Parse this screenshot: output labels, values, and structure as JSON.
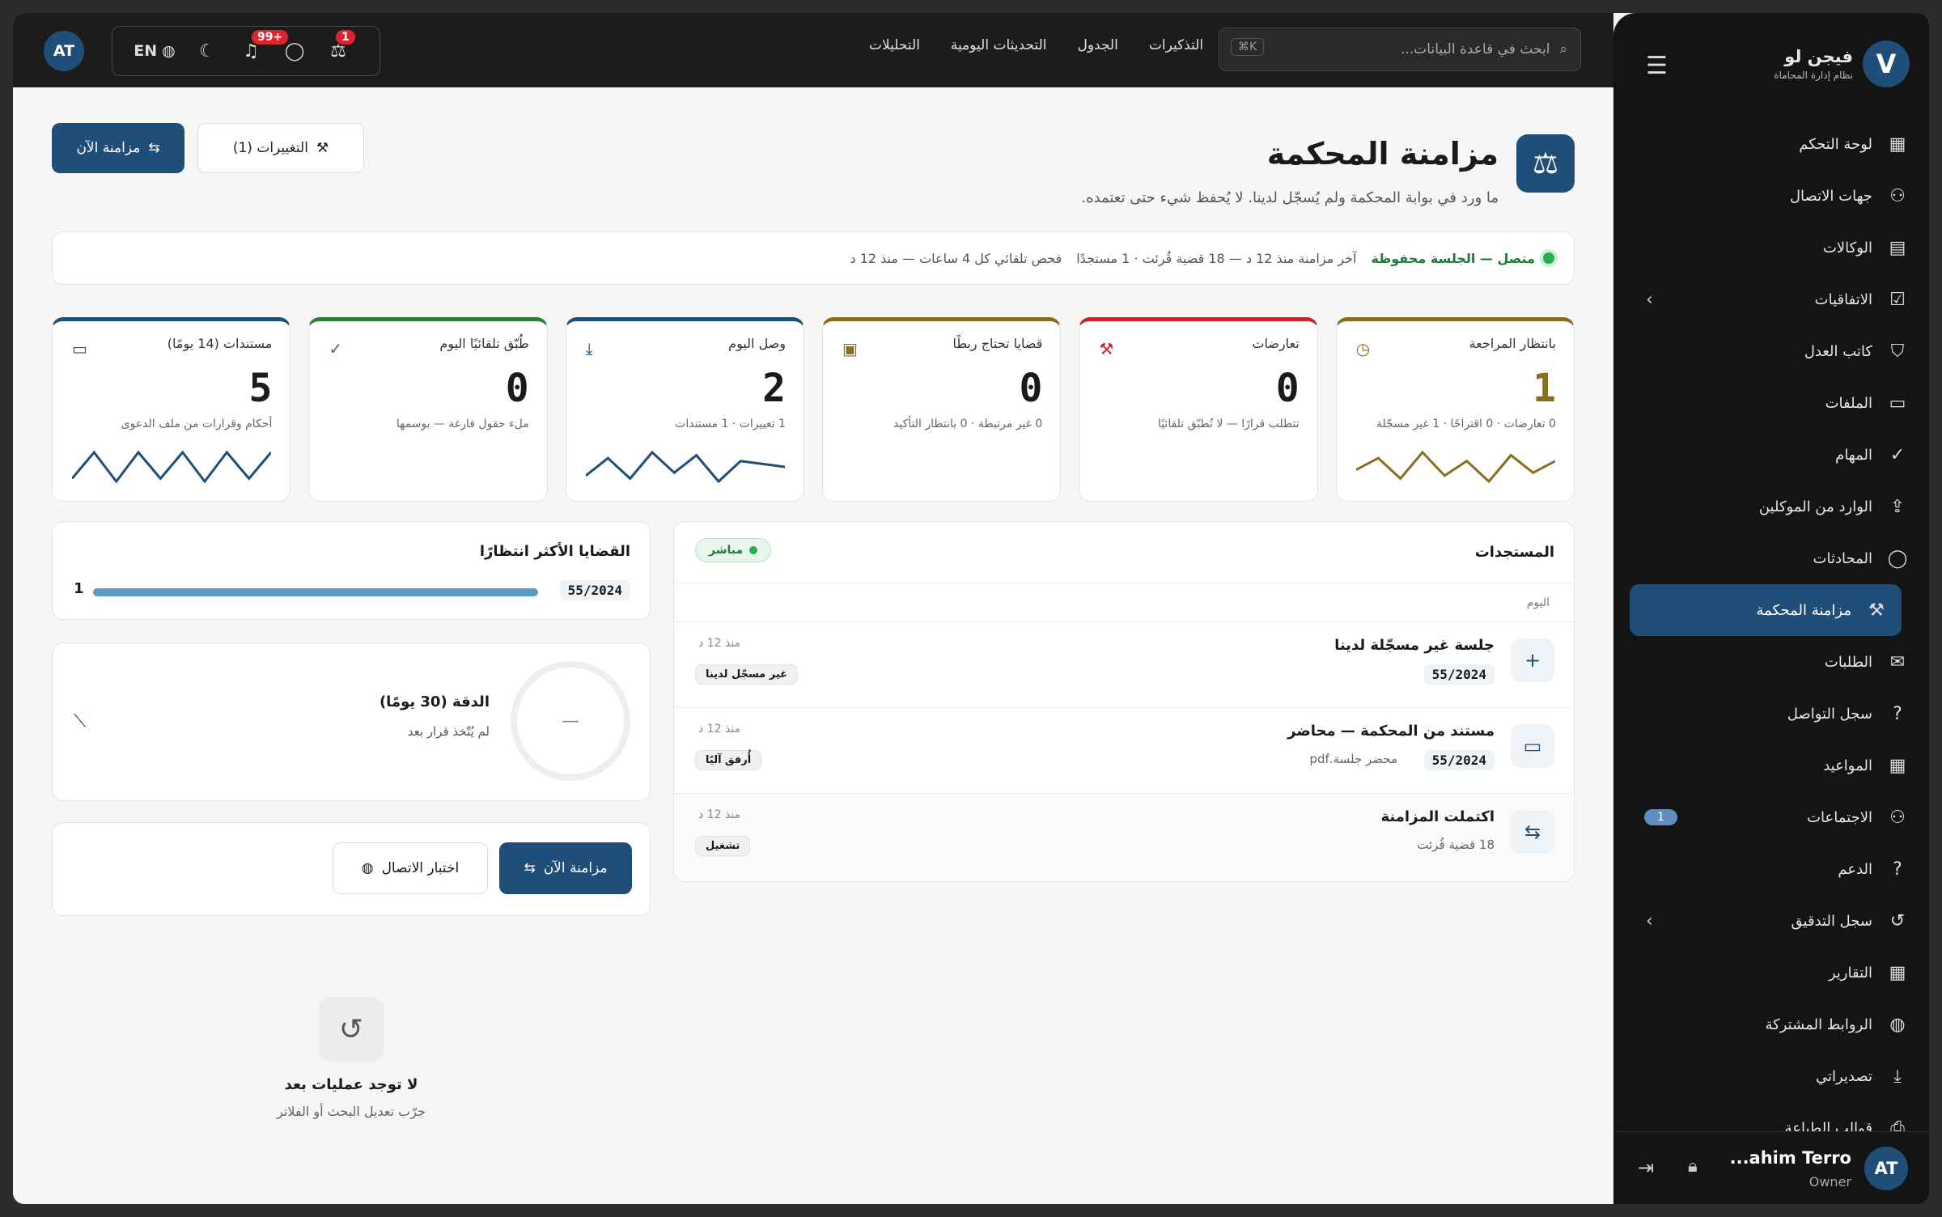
{
  "topbar": {
    "avatar": "AT",
    "lang": "EN",
    "notif_badge": "99+",
    "scale_badge": "1",
    "nav": [
      "التذكيرات",
      "الجدول",
      "التحديثات اليومية",
      "التحليلات"
    ],
    "search_placeholder": "ابحث في قاعدة البيانات...",
    "search_kbd": "K⌘"
  },
  "sidebar": {
    "brand": "فيجن لو",
    "brand_sub": "نظام إدارة المحاماة",
    "logo": "V",
    "items": [
      {
        "label": "لوحة التحكم",
        "icon": "dashboard-icon",
        "glyph": "▦"
      },
      {
        "label": "جهات الاتصال",
        "icon": "person-icon",
        "glyph": "⚇"
      },
      {
        "label": "الوكالات",
        "icon": "document-icon",
        "glyph": "▤"
      },
      {
        "label": "الاتفاقيات",
        "icon": "doc-check-icon",
        "glyph": "☑"
      },
      {
        "label": "كاتب العدل",
        "icon": "shield-icon",
        "glyph": "⛉"
      },
      {
        "label": "الملفات",
        "icon": "folder-icon",
        "glyph": "▭"
      },
      {
        "label": "المهام",
        "icon": "check-icon",
        "glyph": "✓"
      },
      {
        "label": "الوارد من الموكلين",
        "icon": "upload-icon",
        "glyph": "⇪"
      },
      {
        "label": "المحادثات",
        "icon": "chat-icon",
        "glyph": "◯"
      },
      {
        "label": "مزامنة المحكمة",
        "icon": "gavel-icon",
        "glyph": "⚒"
      },
      {
        "label": "الطلبات",
        "icon": "mail-icon",
        "glyph": "✉"
      },
      {
        "label": "سجل التواصل",
        "icon": "help-icon",
        "glyph": "?"
      },
      {
        "label": "المواعيد",
        "icon": "calendar-icon",
        "glyph": "▦"
      },
      {
        "label": "الاجتماعات",
        "icon": "people-icon",
        "glyph": "⚇"
      },
      {
        "label": "الدعم",
        "icon": "support-icon",
        "glyph": "?"
      },
      {
        "label": "سجل التدقيق",
        "icon": "history-icon",
        "glyph": "↺"
      },
      {
        "label": "التقارير",
        "icon": "grid-icon",
        "glyph": "▦"
      },
      {
        "label": "الروابط المشتركة",
        "icon": "globe-icon",
        "glyph": "◍"
      },
      {
        "label": "تصديراتي",
        "icon": "download-icon",
        "glyph": "⤓"
      },
      {
        "label": "قوالب الطباعة",
        "icon": "print-icon",
        "glyph": "⎙"
      }
    ],
    "active_index": 9,
    "meetings_count": "1",
    "user_name": "...ahim Terro",
    "user_role": "Owner",
    "user_avatar": "AT"
  },
  "page": {
    "title": "مزامنة المحكمة",
    "subtitle": "ما ورد في بوابة المحكمة ولم يُسجّل لدينا. لا يُحفظ شيء حتى تعتمده.",
    "sync_now": "مزامنة الآن",
    "changes": "التغييرات (1)"
  },
  "status": {
    "connected": "متصل — الجلسة محفوظة",
    "last_sync": "آخر مزامنة منذ 12 د — 18 قضية قُرئت · 1 مستجدًا",
    "auto_check": "فحص تلقائي كل 4 ساعات — منذ 12 د"
  },
  "stats": [
    {
      "label": "بانتظار المراجعة",
      "value": "1",
      "sub": "0 تعارضات · 0 اقتراحًا · 1 غير مسجّلة",
      "color": "#8a6d1f",
      "icon": "clock-icon",
      "glyph": "◷",
      "spark": [
        6,
        10,
        3,
        12,
        4,
        9,
        2,
        11,
        5,
        9
      ]
    },
    {
      "label": "تعارضات",
      "value": "0",
      "sub": "تتطلب قرارًا — لا تُطبّق تلقائيًا",
      "color": "#c62828",
      "icon": "gavel-icon",
      "glyph": "⚒",
      "spark": null
    },
    {
      "label": "قضايا تحتاج ربطًا",
      "value": "0",
      "sub": "0 غير مرتبطة · 0 بانتظار التأكيد",
      "color": "#8a6d1f",
      "icon": "briefcase-icon",
      "glyph": "▣",
      "spark": null
    },
    {
      "label": "وصل اليوم",
      "value": "2",
      "sub": "1 تغييرات · 1 مستندات",
      "color": "#1f4e79",
      "icon": "download-icon",
      "glyph": "⤓",
      "spark": [
        4,
        10,
        3,
        12,
        5,
        11,
        2,
        9,
        8,
        7
      ]
    },
    {
      "label": "طُبّق تلقائيًا اليوم",
      "value": "0",
      "sub": "ملء حقول فارغة — بوسمها",
      "color": "#2e7d32",
      "icon": "check-icon",
      "glyph": "✓",
      "spark": null
    },
    {
      "label": "مستندات (14 يومًا)",
      "value": "5",
      "sub": "أحكام وقرارات من ملف الدعوى",
      "color": "#1f4e79",
      "icon": "folder-icon",
      "glyph": "▭",
      "spark": [
        3,
        12,
        2,
        12,
        3,
        12,
        2,
        12,
        3,
        12
      ]
    }
  ],
  "feed": {
    "title": "المستجدات",
    "live": "مباشر",
    "day": "اليوم",
    "rows": [
      {
        "title": "جلسة غير مسجّلة لدينا",
        "case": "55/2024",
        "extra": "",
        "time": "منذ 12 د",
        "tag": "غير مسجّل لدينا",
        "icon": "plus-icon",
        "glyph": "+"
      },
      {
        "title": "مستند من المحكمة — محاضر",
        "case": "55/2024",
        "extra": "محضر جلسة.pdf",
        "time": "منذ 12 د",
        "tag": "أُرفق آليًا",
        "icon": "folder-icon",
        "glyph": "▭"
      },
      {
        "title": "اكتملت المزامنة",
        "case": "",
        "extra": "18 قضية قُرئت",
        "time": "منذ 12 د",
        "tag": "تشغيل",
        "icon": "sync-icon",
        "glyph": "⇆"
      }
    ]
  },
  "top_cases": {
    "title": "القضايا الأكثر انتظارًا",
    "case": "55/2024",
    "count": "1",
    "fill": 1.0
  },
  "accuracy": {
    "title": "الدقة (30 يومًا)",
    "sub": "لم يُتّخذ قرار بعد",
    "ring": "—"
  },
  "actions": {
    "sync": "مزامنة الآن",
    "test": "اختبار الاتصال"
  },
  "empty": {
    "title": "لا توجد عمليات بعد",
    "sub": "جرّب تعديل البحث أو الفلاتر"
  }
}
